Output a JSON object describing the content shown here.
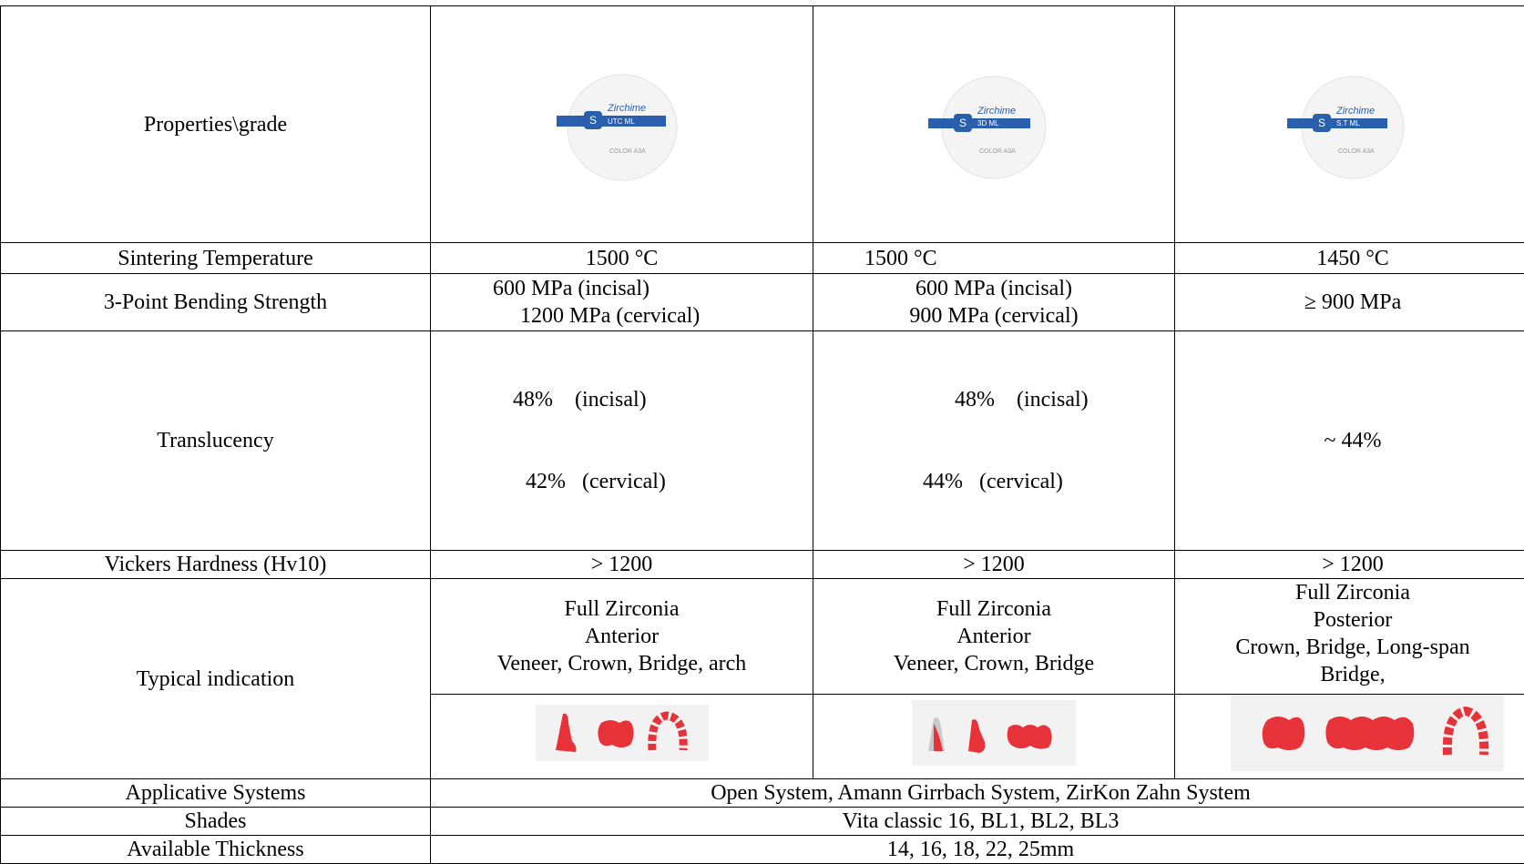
{
  "header": {
    "label": "Properties\\grade",
    "discs": [
      {
        "brand": "Zirchime",
        "band_text": "UTC ML",
        "bottom_text": "COLOR A3A"
      },
      {
        "brand": "Zirchime",
        "band_text": "3D ML",
        "bottom_text": "COLOR A3A"
      },
      {
        "brand": "Zirchime",
        "band_text": "S.T ML",
        "bottom_text": "COLOR A3A"
      }
    ]
  },
  "rows": {
    "sintering": {
      "label": "Sintering Temperature",
      "values": [
        "1500 °C",
        "1500 °C",
        "1450 °C"
      ]
    },
    "bending": {
      "label": "3-Point Bending Strength",
      "values": [
        [
          "600 MPa (incisal)",
          "1200 MPa (cervical)"
        ],
        [
          "600 MPa (incisal)",
          "900 MPa (cervical)"
        ],
        [
          "≥ 900 MPa"
        ]
      ]
    },
    "translucency": {
      "label": "Translucency",
      "values": [
        [
          "48%    (incisal)",
          "42%   (cervical)"
        ],
        [
          "48%    (incisal)",
          "44%   (cervical)"
        ],
        [
          "~ 44%"
        ]
      ]
    },
    "vickers": {
      "label": "Vickers Hardness (Hv10)",
      "values": [
        "> 1200",
        "> 1200",
        "> 1200"
      ]
    },
    "indication": {
      "label": "Typical indication",
      "values": [
        [
          "Full Zirconia",
          "Anterior",
          "Veneer, Crown, Bridge, arch"
        ],
        [
          "Full Zirconia",
          "Anterior",
          "Veneer, Crown, Bridge"
        ],
        [
          "Full Zirconia",
          "Posterior",
          "Crown, Bridge, Long-span",
          "Bridge,"
        ]
      ]
    },
    "applicative": {
      "label": "Applicative Systems",
      "value": "Open System, Amann Girrbach System, ZirKon Zahn System"
    },
    "shades": {
      "label": "Shades",
      "value": "Vita classic 16, BL1, BL2, BL3"
    },
    "thickness": {
      "label": "Available Thickness",
      "value": "14, 16, 18, 22, 25mm"
    }
  },
  "colors": {
    "tooth_red": "#e8323a",
    "brand_blue": "#2a5fae",
    "border": "#000000"
  }
}
